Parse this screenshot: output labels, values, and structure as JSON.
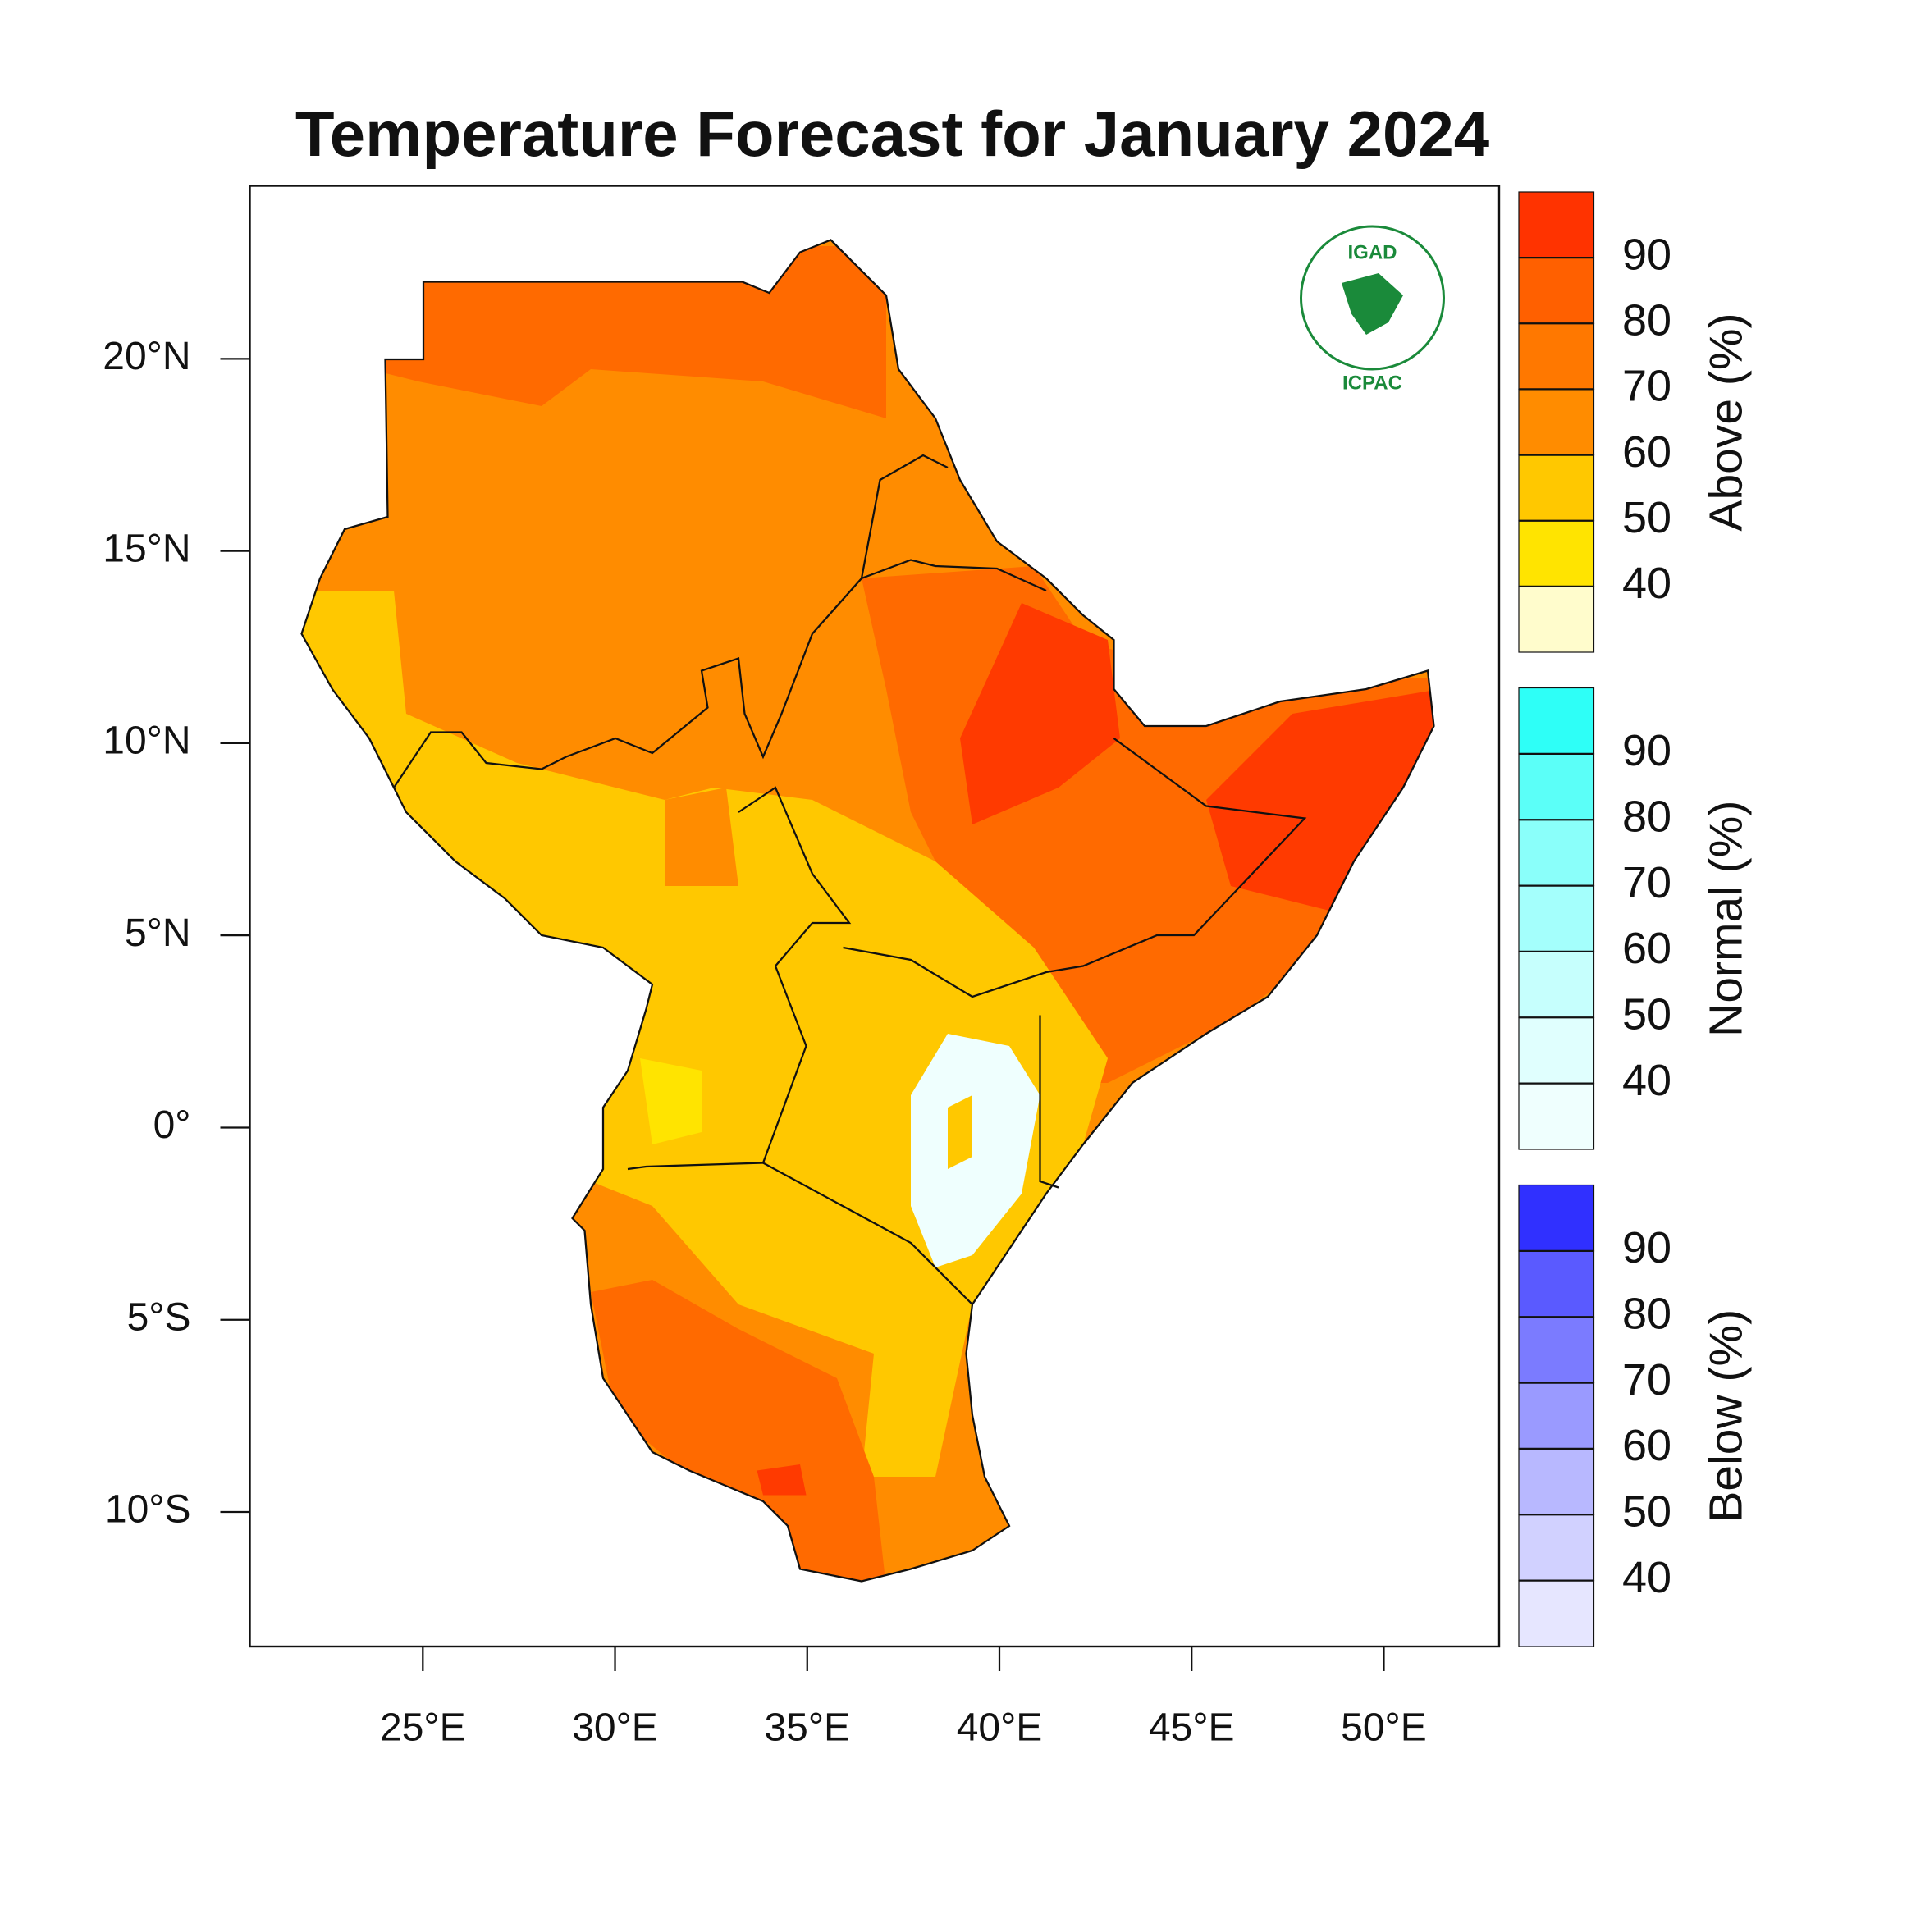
{
  "chart_data": {
    "type": "map",
    "title": "Temperature Forecast for January 2024",
    "xlim": [
      20.5,
      53
    ],
    "ylim": [
      -13.5,
      24.5
    ],
    "xticks": [
      {
        "value": 25,
        "label": "25°E"
      },
      {
        "value": 30,
        "label": "30°E"
      },
      {
        "value": 35,
        "label": "35°E"
      },
      {
        "value": 40,
        "label": "40°E"
      },
      {
        "value": 45,
        "label": "45°E"
      },
      {
        "value": 50,
        "label": "50°E"
      }
    ],
    "yticks": [
      {
        "value": 20,
        "label": "20°N"
      },
      {
        "value": 15,
        "label": "15°N"
      },
      {
        "value": 10,
        "label": "10°N"
      },
      {
        "value": 5,
        "label": "5°N"
      },
      {
        "value": 0,
        "label": "0°"
      },
      {
        "value": -5,
        "label": "5°S"
      },
      {
        "value": -10,
        "label": "10°S"
      }
    ],
    "logo": {
      "top": "IGAD",
      "bottom": "ICPAC"
    },
    "legends": [
      {
        "title": "Above (%)",
        "ticks": [
          40,
          50,
          60,
          70,
          80,
          90
        ],
        "colors": [
          "#fffccc",
          "#ffe400",
          "#ffc800",
          "#ff8c00",
          "#ff7800",
          "#ff6000",
          "#ff3300"
        ]
      },
      {
        "title": "Normal (%)",
        "ticks": [
          40,
          50,
          60,
          70,
          80,
          90
        ],
        "colors": [
          "#effffe",
          "#e0fffe",
          "#c6fffd",
          "#a4fffc",
          "#8afffa",
          "#5bfff8",
          "#2efff7"
        ]
      },
      {
        "title": "Below (%)",
        "ticks": [
          40,
          50,
          60,
          70,
          80,
          90
        ],
        "colors": [
          "#e6e6ff",
          "#d1d1ff",
          "#b8b8ff",
          "#9a9aff",
          "#7b7bff",
          "#5a5aff",
          "#3030ff"
        ]
      }
    ]
  }
}
